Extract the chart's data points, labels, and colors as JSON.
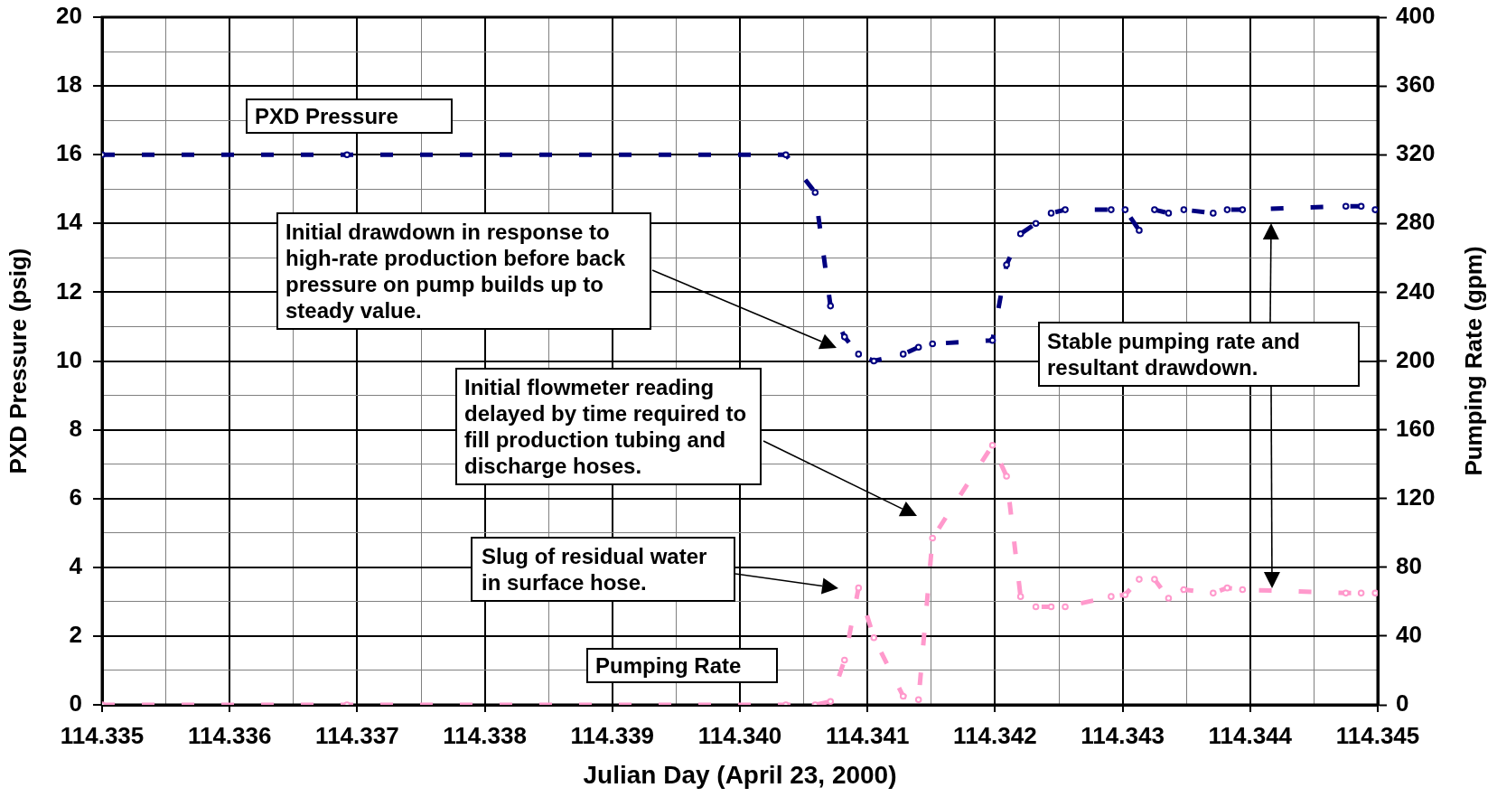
{
  "chart_data": {
    "type": "line",
    "xlabel": "Julian Day (April 23, 2000)",
    "ylabel": "PXD Pressure (psig)",
    "y2label": "Pumping Rate (gpm)",
    "x": [
      114.335,
      114.33692,
      114.34036,
      114.34059,
      114.34071,
      114.34082,
      114.34093,
      114.34105,
      114.34128,
      114.3414,
      114.34151,
      114.34198,
      114.34209,
      114.3422,
      114.34232,
      114.34244,
      114.34255,
      114.34291,
      114.34302,
      114.34313,
      114.34325,
      114.34336,
      114.34348,
      114.34371,
      114.34382,
      114.34394,
      114.34475,
      114.34487,
      114.34498
    ],
    "series": [
      {
        "name": "PXD Pressure",
        "color": "#000080",
        "values": [
          16,
          16,
          16,
          14.9,
          11.6,
          10.7,
          10.2,
          10.0,
          10.2,
          10.4,
          10.5,
          10.6,
          12.8,
          13.7,
          14.0,
          14.3,
          14.4,
          14.4,
          14.4,
          13.8,
          14.4,
          14.3,
          14.4,
          14.3,
          14.4,
          14.4,
          14.5,
          14.5,
          14.4
        ]
      },
      {
        "name": "Pumping Rate",
        "color": "#ff99cc",
        "axis": "y2",
        "values": [
          0,
          0,
          0,
          0,
          2,
          26,
          68,
          39,
          5,
          3,
          97,
          151,
          133,
          63,
          57,
          57,
          57,
          63,
          64,
          73,
          73,
          62,
          67,
          65,
          68,
          67,
          65,
          65,
          65
        ]
      }
    ],
    "xlim": [
      114.335,
      114.345
    ],
    "xticks": [
      114.335,
      {
        "value": 114.3355,
        "label": null
      },
      114.336,
      {
        "value": 114.3365,
        "label": null
      },
      114.337,
      {
        "value": 114.3375,
        "label": null
      },
      114.338,
      {
        "value": 114.3385,
        "label": null
      },
      114.339,
      {
        "value": 114.3395,
        "label": null
      },
      {
        "value": 114.34,
        "label": "114.340"
      },
      {
        "value": 114.3405,
        "label": null
      },
      114.341,
      {
        "value": 114.3415,
        "label": null
      },
      114.342,
      {
        "value": 114.3425,
        "label": null
      },
      114.343,
      {
        "value": 114.3435,
        "label": null
      },
      114.344,
      {
        "value": 114.3445,
        "label": null
      },
      114.345
    ],
    "ylim": [
      0,
      20
    ],
    "yticks": [
      0,
      {
        "value": 1,
        "label": null
      },
      2,
      {
        "value": 3,
        "label": null
      },
      4,
      {
        "value": 5,
        "label": null
      },
      6,
      {
        "value": 7,
        "label": null
      },
      8,
      {
        "value": 9,
        "label": null
      },
      10,
      {
        "value": 11,
        "label": null
      },
      12,
      {
        "value": 13,
        "label": null
      },
      14,
      {
        "value": 15,
        "label": null
      },
      16,
      {
        "value": 17,
        "label": null
      },
      18,
      {
        "value": 19,
        "label": null
      },
      20
    ],
    "y2lim": [
      0,
      400
    ],
    "y2ticks": [
      0,
      40,
      80,
      120,
      160,
      200,
      240,
      280,
      320,
      360,
      400
    ],
    "annotations": [
      "Initial drawdown in response to high-rate production before back pressure on pump builds up to steady value.",
      "Initial flowmeter reading delayed by time required to fill production tubing and discharge hoses.",
      "Slug of residual water in surface hose.",
      "Stable pumping rate and resultant drawdown."
    ],
    "grid": true,
    "legend": false,
    "marker": "circle",
    "line_style": "dashed"
  }
}
